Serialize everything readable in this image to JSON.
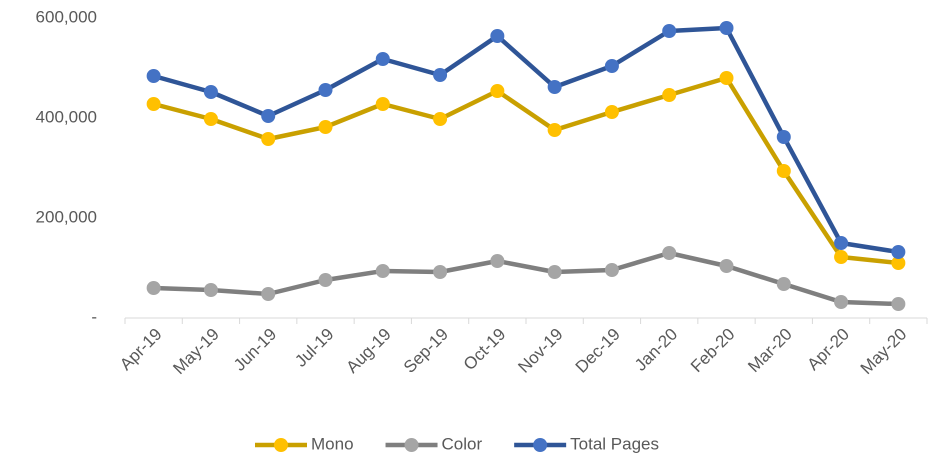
{
  "chart_data": {
    "type": "line",
    "categories": [
      "Apr-19",
      "May-19",
      "Jun-19",
      "Jul-19",
      "Aug-19",
      "Sep-19",
      "Oct-19",
      "Nov-19",
      "Dec-19",
      "Jan-20",
      "Feb-20",
      "Mar-20",
      "Apr-20",
      "May-20"
    ],
    "series": [
      {
        "name": "Mono",
        "color": "#c9a000",
        "marker_color": "#ffc000",
        "values": [
          428000,
          398000,
          358000,
          382000,
          428000,
          398000,
          454000,
          376000,
          412000,
          446000,
          480000,
          294000,
          122000,
          110000
        ]
      },
      {
        "name": "Color",
        "color": "#7f7f7f",
        "marker_color": "#a5a5a5",
        "values": [
          60000,
          56000,
          48000,
          76000,
          94000,
          92000,
          114000,
          92000,
          96000,
          130000,
          104000,
          68000,
          32000,
          28000
        ]
      },
      {
        "name": "Total Pages",
        "color": "#2f5597",
        "marker_color": "#4472c4",
        "values": [
          484000,
          452000,
          404000,
          456000,
          518000,
          486000,
          564000,
          462000,
          504000,
          574000,
          580000,
          362000,
          150000,
          132000
        ]
      }
    ],
    "ylim": [
      0,
      600000
    ],
    "yticks": [
      {
        "value": 0,
        "label": "-"
      },
      {
        "value": 200000,
        "label": "200,000"
      },
      {
        "value": 400000,
        "label": "400,000"
      },
      {
        "value": 600000,
        "label": "600,000"
      }
    ],
    "grid": false,
    "legend": "bottom"
  }
}
